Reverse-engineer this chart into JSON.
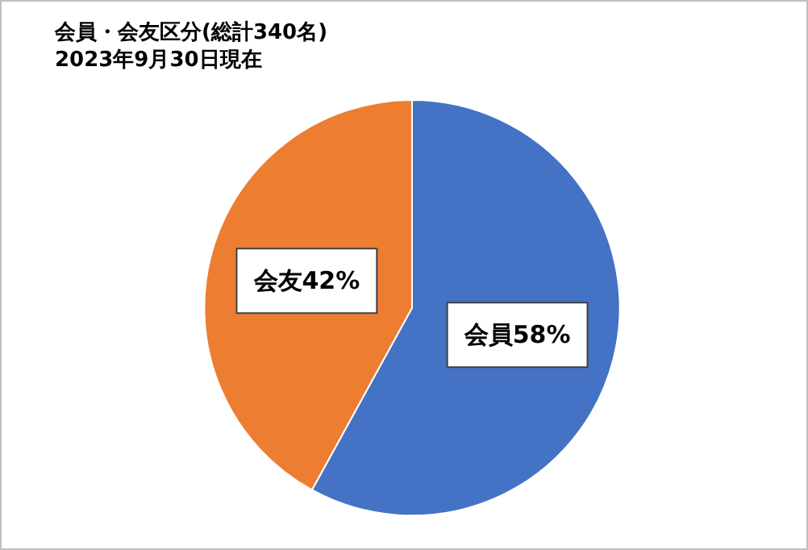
{
  "chart_data": {
    "type": "pie",
    "title": "会員・会友区分(総計340名)",
    "subtitle": "2023年9月30日現在",
    "categories": [
      "会員",
      "会友"
    ],
    "values": [
      58,
      42
    ],
    "colors": [
      "#4472c4",
      "#ed7d31"
    ],
    "value_labels": [
      "58%",
      "42%"
    ],
    "legend": false
  }
}
